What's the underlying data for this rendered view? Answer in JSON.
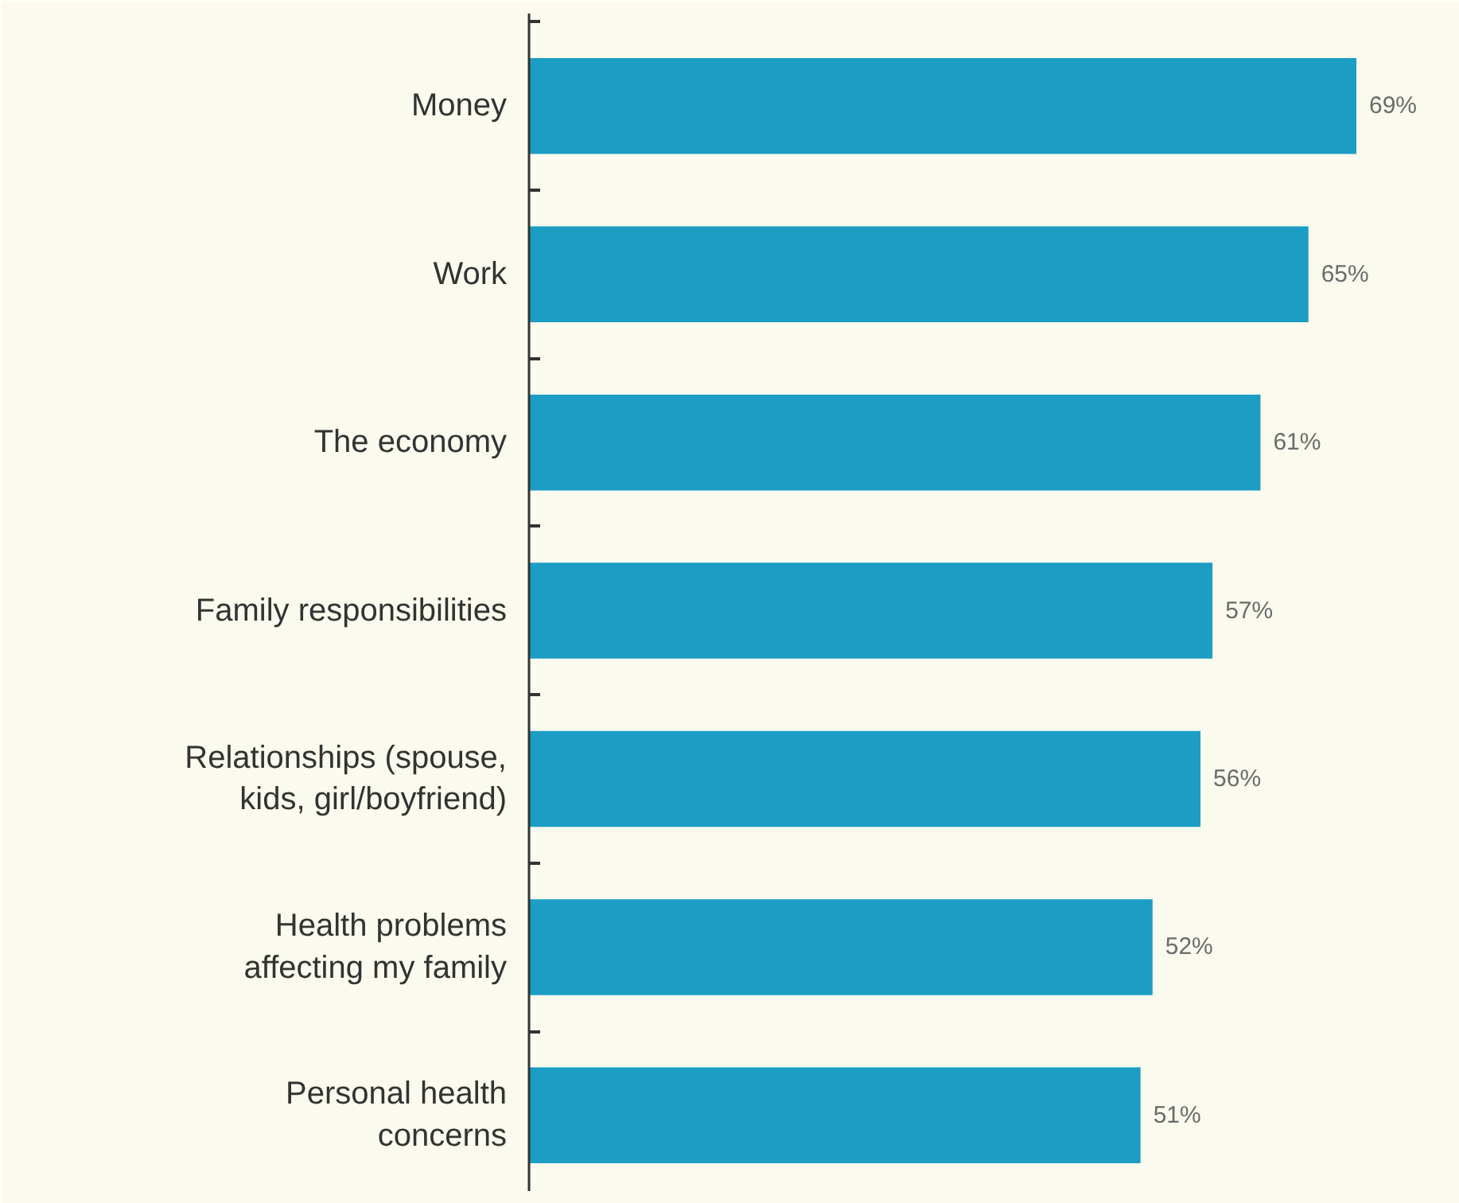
{
  "chart_data": {
    "type": "bar",
    "orientation": "horizontal",
    "categories": [
      "Money",
      "Work",
      "The economy",
      "Family responsibilities",
      "Relationships (spouse, kids, girl/boyfriend)",
      "Health problems affecting my family",
      "Personal health concerns"
    ],
    "values": [
      69,
      65,
      61,
      57,
      56,
      52,
      51
    ],
    "value_labels": [
      "69%",
      "65%",
      "61%",
      "57%",
      "56%",
      "52%",
      "51%"
    ],
    "color": "#1b9dc4"
  }
}
